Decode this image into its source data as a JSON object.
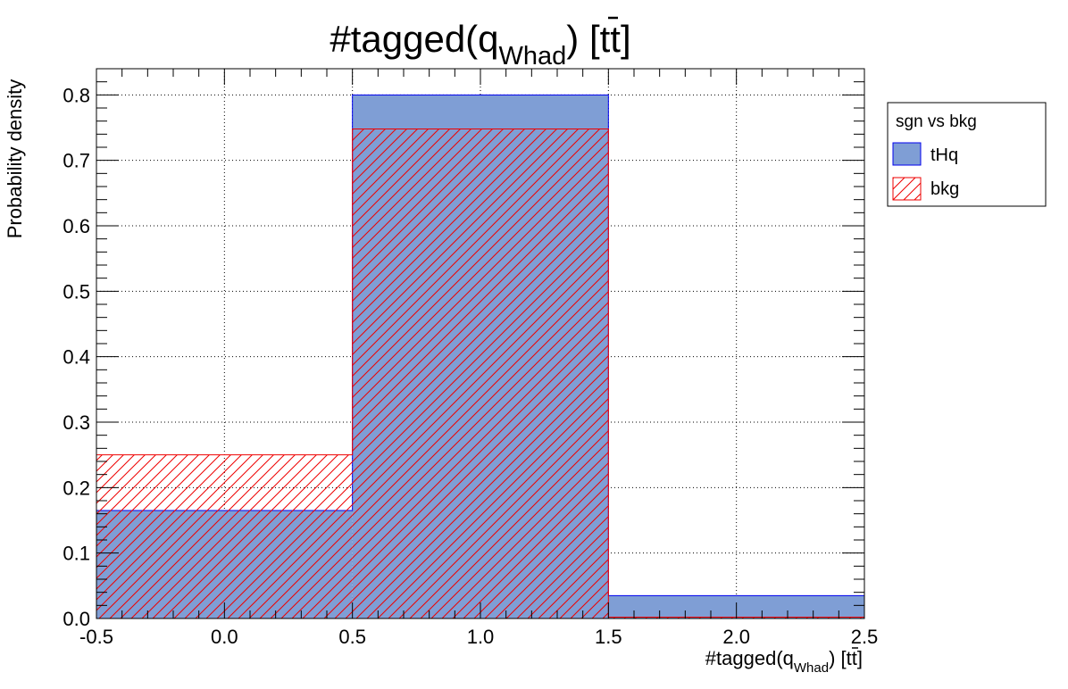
{
  "chart_data": {
    "type": "bar",
    "title_main": "#tagged(q",
    "title_sub": "Whad",
    "title_tail": ") [t",
    "title_tbar": "t",
    "title_end": "]",
    "xlabel_main": "#tagged(q",
    "xlabel_sub": "Whad",
    "xlabel_tail": ") [t",
    "xlabel_tbar": "t",
    "xlabel_end": "]",
    "ylabel": "Probability density",
    "xlim": [
      -0.5,
      2.5
    ],
    "ylim": [
      0,
      0.84
    ],
    "x_ticks": [
      "-0.5",
      "0.0",
      "0.5",
      "1.0",
      "1.5",
      "2.0",
      "2.5"
    ],
    "y_ticks": [
      "0.0",
      "0.1",
      "0.2",
      "0.3",
      "0.4",
      "0.5",
      "0.6",
      "0.7",
      "0.8"
    ],
    "bin_edges": [
      -0.5,
      0.5,
      1.5,
      2.5
    ],
    "grid": true,
    "series": [
      {
        "name": "tHq",
        "values": [
          0.165,
          0.8,
          0.035
        ],
        "fill": "#7f9ed5",
        "stroke": "#0000ee",
        "style": "solid"
      },
      {
        "name": "bkg",
        "values": [
          0.25,
          0.748,
          0.002
        ],
        "fill": "none",
        "stroke": "#ee0000",
        "style": "hatched"
      }
    ],
    "legend": {
      "title": "sgn vs bkg",
      "position": "top-right-outside"
    }
  }
}
